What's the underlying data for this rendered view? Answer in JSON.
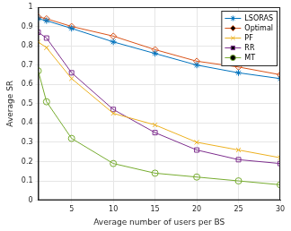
{
  "chart_data": {
    "type": "line",
    "x_label": "Average number of users per BS",
    "y_label": "Average SR",
    "x": [
      1,
      2,
      5,
      10,
      15,
      20,
      25,
      30
    ],
    "series": [
      {
        "name": "LSORAS",
        "color": "#0072bd",
        "marker": "asterisk",
        "values": [
          0.94,
          0.93,
          0.89,
          0.82,
          0.76,
          0.7,
          0.66,
          0.63
        ]
      },
      {
        "name": "Optimal",
        "color": "#d95319",
        "marker": "diamond",
        "values": [
          0.95,
          0.94,
          0.9,
          0.85,
          0.78,
          0.72,
          0.69,
          0.65
        ]
      },
      {
        "name": "PF",
        "color": "#edb120",
        "marker": "x",
        "values": [
          0.82,
          0.79,
          0.63,
          0.45,
          0.39,
          0.3,
          0.26,
          0.22
        ]
      },
      {
        "name": "RR",
        "color": "#7e2f8e",
        "marker": "square",
        "values": [
          0.87,
          0.84,
          0.66,
          0.47,
          0.35,
          0.26,
          0.21,
          0.19
        ]
      },
      {
        "name": "MT",
        "color": "#77ac30",
        "marker": "circle",
        "values": [
          0.67,
          0.51,
          0.32,
          0.19,
          0.14,
          0.12,
          0.1,
          0.08
        ]
      }
    ],
    "xlim": [
      1,
      30
    ],
    "xticks": [
      5,
      10,
      15,
      20,
      25,
      30
    ],
    "ylim": [
      0,
      1
    ],
    "yticks": [
      0,
      0.1,
      0.2,
      0.3,
      0.4,
      0.5,
      0.6,
      0.7,
      0.8,
      0.9,
      1
    ],
    "grid": true,
    "legend": "upper right"
  }
}
